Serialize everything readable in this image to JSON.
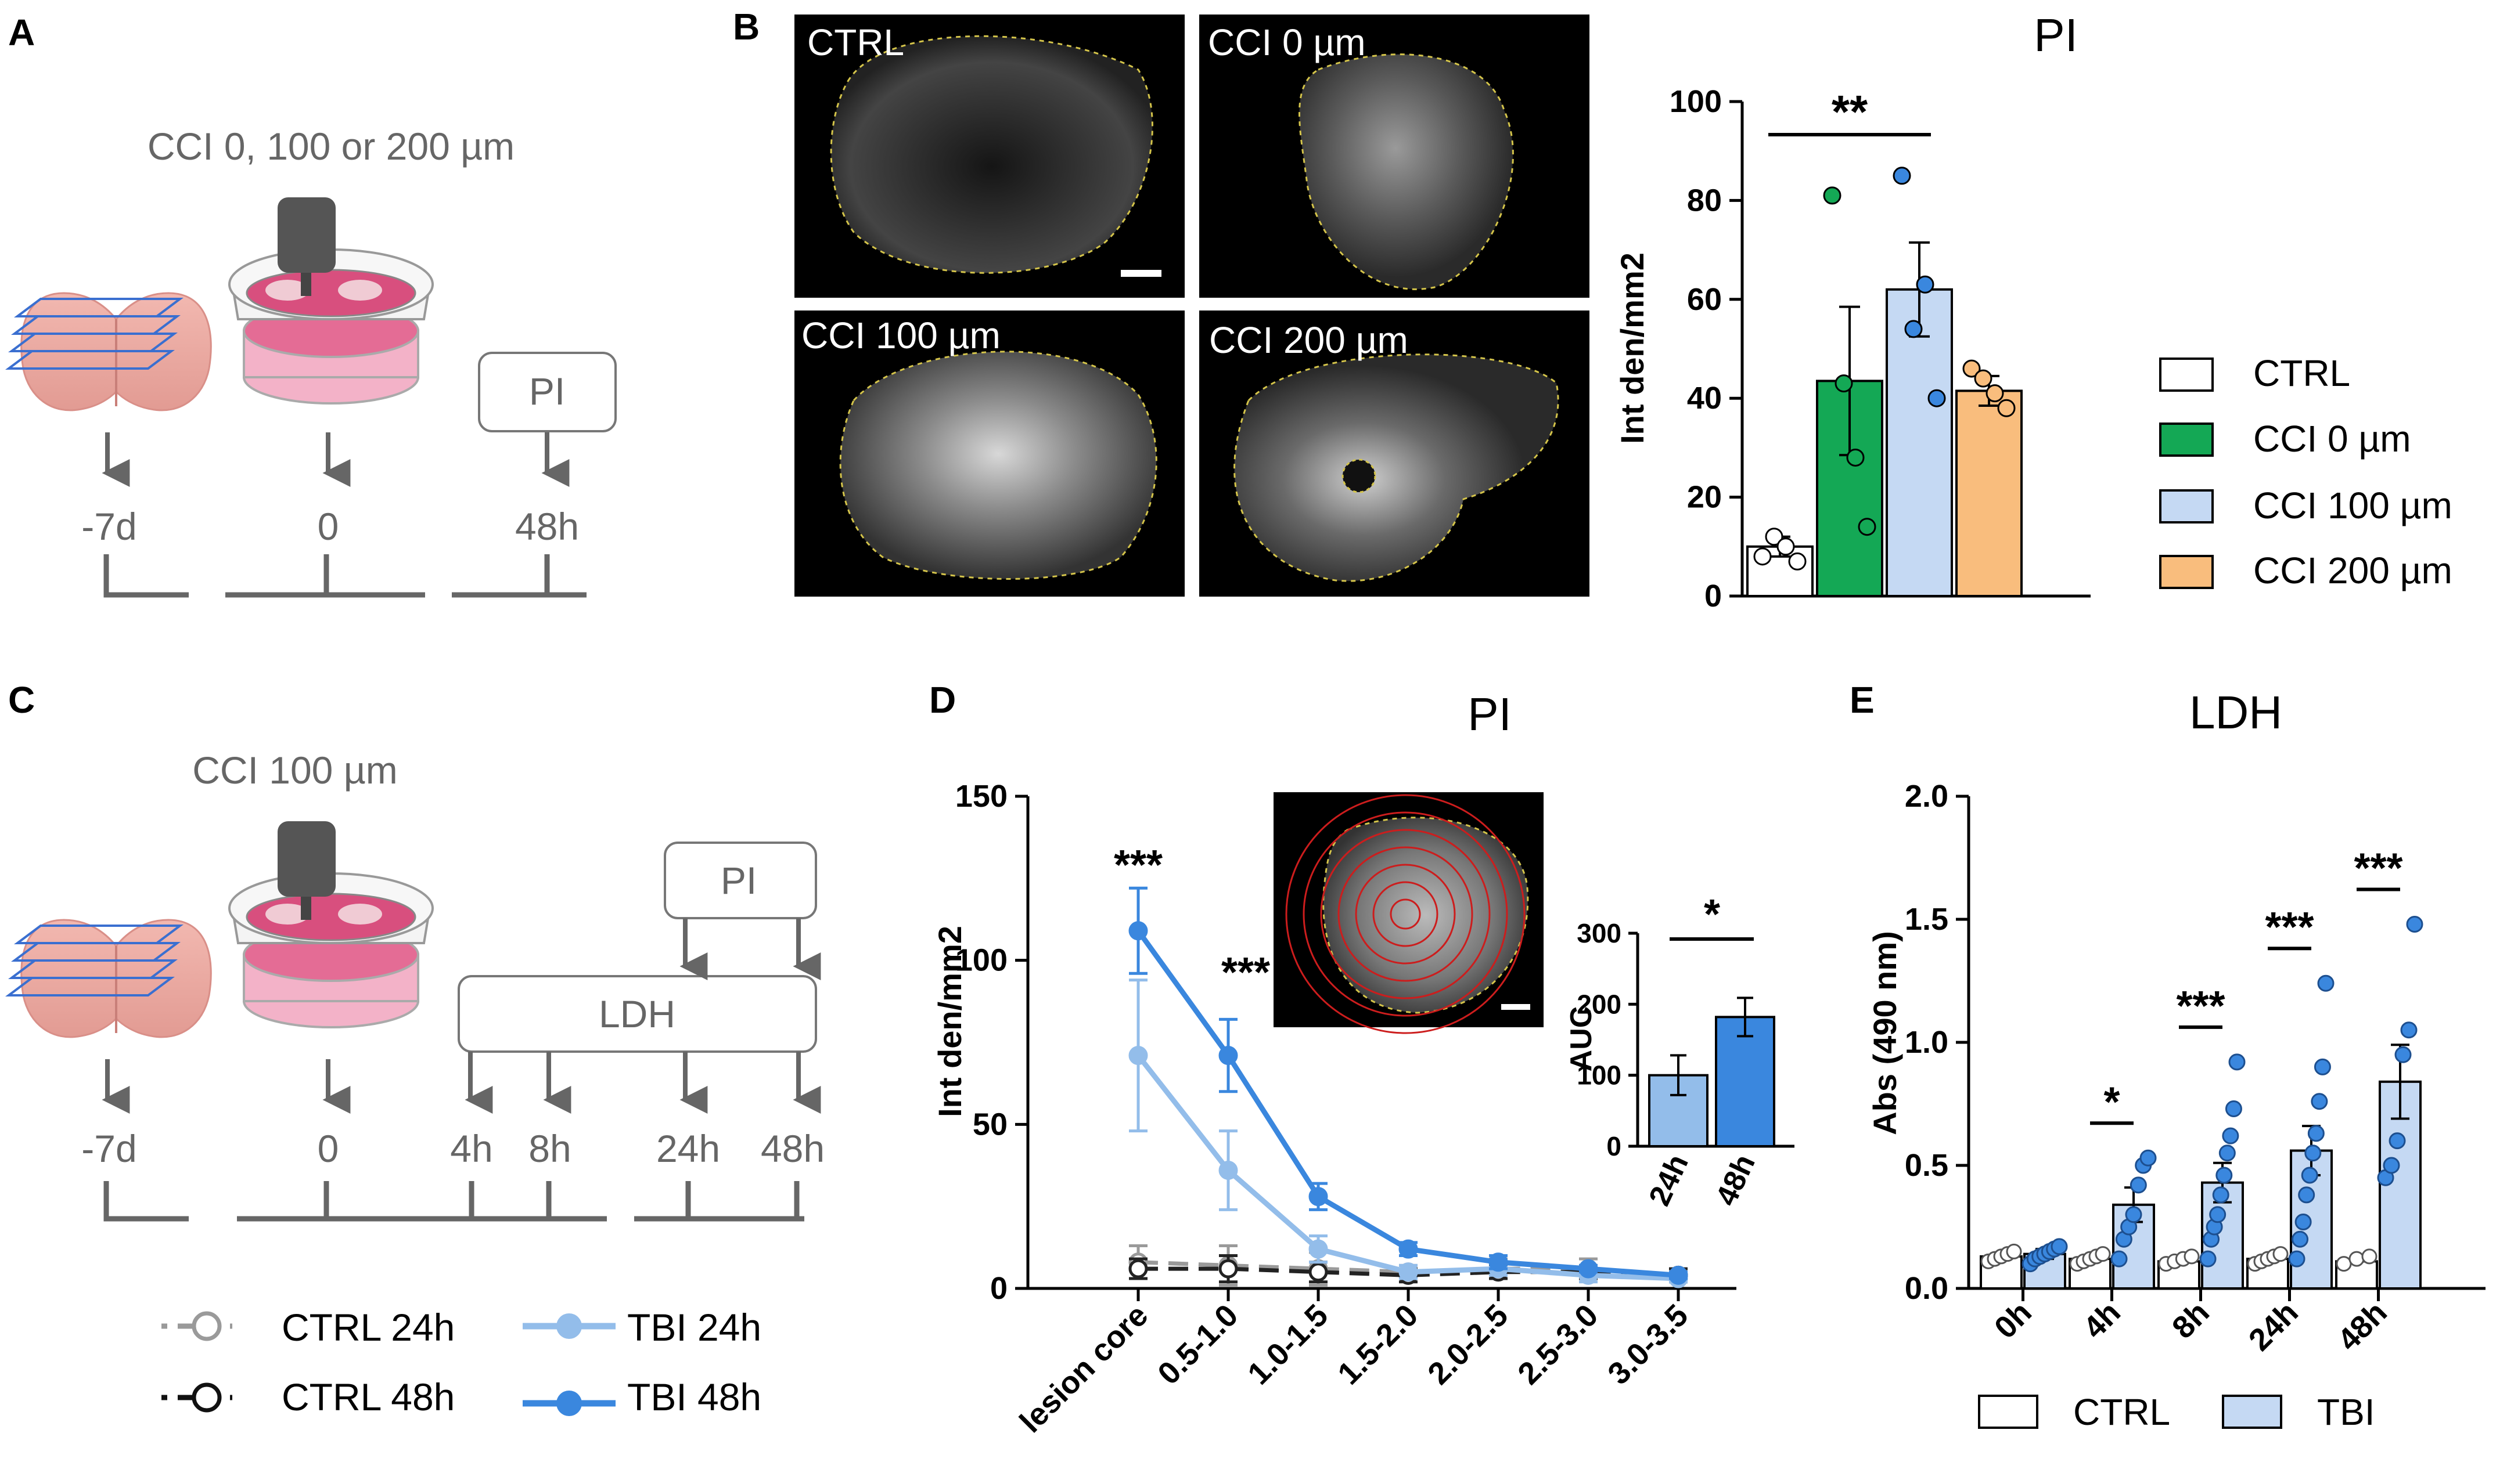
{
  "panel_labels": {
    "a": "A",
    "b": "B",
    "c": "C",
    "d": "D",
    "e": "E"
  },
  "panel_a": {
    "title": "CCI 0, 100 or 200 µm",
    "pi_box": "PI",
    "timepoints": [
      "-7d",
      "0",
      "48h"
    ]
  },
  "panel_b_images": [
    "CTRL",
    "CCI 0 µm",
    "CCI 100 µm",
    "CCI 200 µm"
  ],
  "panel_c": {
    "title": "CCI 100 µm",
    "pi_box": "PI",
    "ldh_box": "LDH",
    "timepoints": [
      "-7d",
      "0",
      "4h",
      "8h",
      "24h",
      "48h"
    ]
  },
  "legend_d": [
    "CTRL 24h",
    "CTRL 48h",
    "TBI 24h",
    "TBI 48h"
  ],
  "colors": {
    "ctrl": "#ffffff",
    "cci0": "#14a855",
    "cci100": "#c5d9f3",
    "cci200": "#f9bd7d",
    "tbi24": "#93bdea",
    "tbi48": "#3a87de",
    "ctrl24": "#9a9a9a",
    "ctrl48": "#222222",
    "scheme": "#666666",
    "slice_outline": "#3a6fd0",
    "dish_pink": "#e46c95",
    "ring": "#cc1d1d",
    "outline_yellow": "#d4c44a"
  },
  "chart_data": [
    {
      "id": "B",
      "type": "bar",
      "title": "PI",
      "ylabel": "Int den/mm2",
      "ylim": [
        0,
        100
      ],
      "yticks": [
        0,
        20,
        40,
        60,
        80,
        100
      ],
      "categories": [
        "CTRL",
        "CCI 0 µm",
        "CCI 100 µm",
        "CCI 200 µm"
      ],
      "values": [
        10,
        43.5,
        62,
        41.5
      ],
      "errors": [
        2,
        15,
        9.5,
        3
      ],
      "points": [
        [
          8,
          12,
          10,
          7
        ],
        [
          81,
          43,
          28,
          14
        ],
        [
          85,
          54,
          63,
          40
        ],
        [
          46,
          44,
          41,
          38
        ]
      ],
      "legend": [
        "CTRL",
        "CCI 0 µm",
        "CCI 100 µm",
        "CCI 200 µm"
      ],
      "annotations": [
        {
          "text": "**",
          "between": [
            "CTRL",
            "CCI 100 µm"
          ]
        }
      ]
    },
    {
      "id": "D",
      "type": "line",
      "title": "PI",
      "ylabel": "Int den/mm2",
      "ylim": [
        0,
        150
      ],
      "yticks": [
        0,
        50,
        100,
        150
      ],
      "categories": [
        "lesion core",
        "0.5-1.0",
        "1.0-1.5",
        "1.5-2.0",
        "2.0-2.5",
        "2.5-3.0",
        "3.0-3.5"
      ],
      "series": [
        {
          "name": "CTRL 24h",
          "values": [
            8,
            7,
            6,
            5,
            6,
            6,
            4
          ],
          "errors": [
            5,
            6,
            5,
            2,
            3,
            3,
            2
          ]
        },
        {
          "name": "CTRL 48h",
          "values": [
            6,
            6,
            5,
            4,
            5,
            5,
            4
          ],
          "errors": [
            3,
            4,
            3,
            2,
            2,
            2,
            2
          ]
        },
        {
          "name": "TBI 24h",
          "values": [
            71,
            36,
            12,
            5,
            6,
            4,
            3
          ],
          "errors": [
            23,
            12,
            4,
            2,
            2,
            2,
            1
          ]
        },
        {
          "name": "TBI 48h",
          "values": [
            109,
            71,
            28,
            12,
            8,
            6,
            4
          ],
          "errors": [
            13,
            11,
            4,
            2,
            2,
            1,
            1
          ]
        }
      ],
      "annotations": [
        {
          "text": "***",
          "at": "lesion core"
        },
        {
          "text": "***",
          "at": "0.5-1.0"
        }
      ],
      "inset": {
        "type": "bar",
        "ylabel": "AUC",
        "ylim": [
          0,
          300
        ],
        "yticks": [
          0,
          100,
          200,
          300
        ],
        "categories": [
          "24h",
          "48h"
        ],
        "values": [
          100,
          182
        ],
        "errors": [
          28,
          27
        ],
        "annotation": "*"
      }
    },
    {
      "id": "E",
      "type": "bar",
      "title": "LDH",
      "ylabel": "Abs (490 nm)",
      "ylim": [
        0,
        2.0
      ],
      "yticks": [
        "0.0",
        "0.5",
        "1.0",
        "1.5",
        "2.0"
      ],
      "categories": [
        "0h",
        "4h",
        "8h",
        "24h",
        "48h"
      ],
      "series": [
        {
          "name": "CTRL",
          "values": [
            0.13,
            0.12,
            0.11,
            0.12,
            0.11
          ],
          "errors": [
            0.01,
            0.01,
            0.01,
            0.01,
            0.01
          ]
        },
        {
          "name": "TBI",
          "values": [
            0.14,
            0.34,
            0.43,
            0.56,
            0.84
          ],
          "errors": [
            0.02,
            0.07,
            0.08,
            0.1,
            0.15
          ]
        }
      ],
      "tbi_points": [
        [
          0.1,
          0.12,
          0.13,
          0.14,
          0.15,
          0.16,
          0.17
        ],
        [
          0.12,
          0.2,
          0.25,
          0.3,
          0.42,
          0.5,
          0.53
        ],
        [
          0.12,
          0.2,
          0.25,
          0.3,
          0.38,
          0.46,
          0.55,
          0.62,
          0.73,
          0.92
        ],
        [
          0.12,
          0.2,
          0.27,
          0.38,
          0.46,
          0.55,
          0.63,
          0.76,
          0.9,
          1.24
        ],
        [
          0.45,
          0.5,
          0.6,
          0.95,
          1.05,
          1.48
        ]
      ],
      "ctrl_points": [
        [
          0.11,
          0.12,
          0.13,
          0.14,
          0.15
        ],
        [
          0.1,
          0.11,
          0.12,
          0.13,
          0.14
        ],
        [
          0.1,
          0.11,
          0.12,
          0.13
        ],
        [
          0.1,
          0.11,
          0.12,
          0.13,
          0.14
        ],
        [
          0.1,
          0.12,
          0.13
        ]
      ],
      "significance": [
        "",
        "*",
        "***",
        "***",
        "***"
      ],
      "legend": [
        "CTRL",
        "TBI"
      ]
    }
  ]
}
